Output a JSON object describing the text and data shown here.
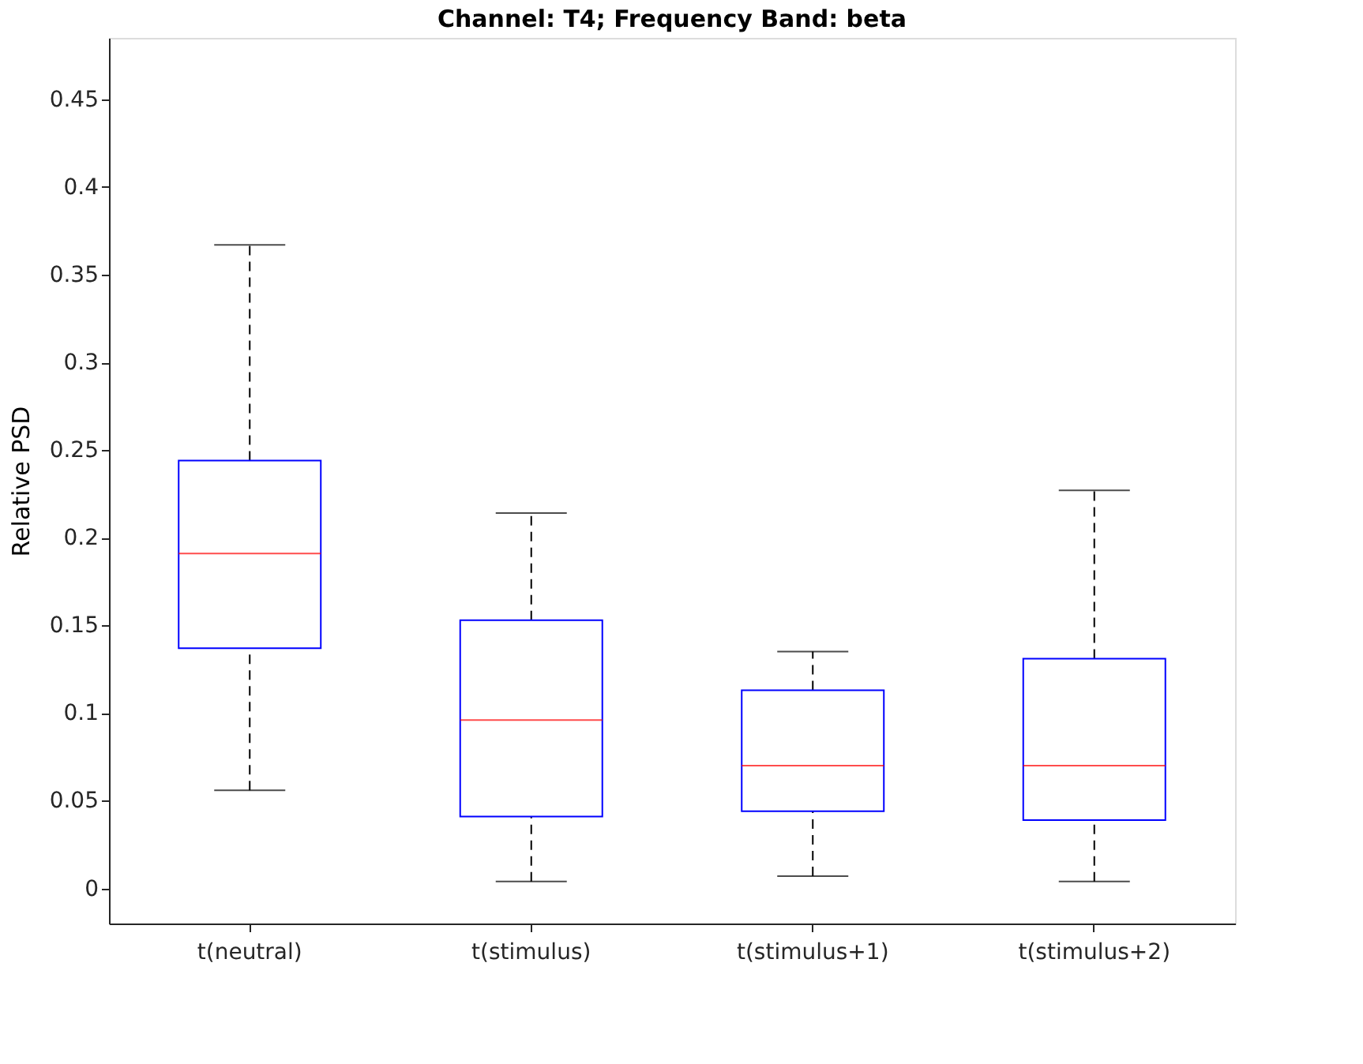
{
  "chart_data": {
    "type": "box",
    "title": "Channel: T4; Frequency Band: beta",
    "ylabel": "Relative PSD",
    "categories": [
      "t(neutral)",
      "t(stimulus)",
      "t(stimulus+1)",
      "t(stimulus+2)"
    ],
    "series": [
      {
        "color": "#0000ff",
        "boxes": [
          {
            "low": 0.056,
            "q1": 0.137,
            "median": 0.191,
            "q3": 0.244,
            "high": 0.367
          },
          {
            "low": 0.004,
            "q1": 0.041,
            "median": 0.096,
            "q3": 0.153,
            "high": 0.214
          },
          {
            "low": 0.007,
            "q1": 0.044,
            "median": 0.07,
            "q3": 0.113,
            "high": 0.135
          },
          {
            "low": 0.004,
            "q1": 0.039,
            "median": 0.07,
            "q3": 0.131,
            "high": 0.227
          }
        ]
      }
    ],
    "ylim": [
      -0.02,
      0.485
    ],
    "yticks": [
      0,
      0.05,
      0.1,
      0.15,
      0.2,
      0.25,
      0.3,
      0.35,
      0.4,
      0.45
    ],
    "grid": false
  }
}
